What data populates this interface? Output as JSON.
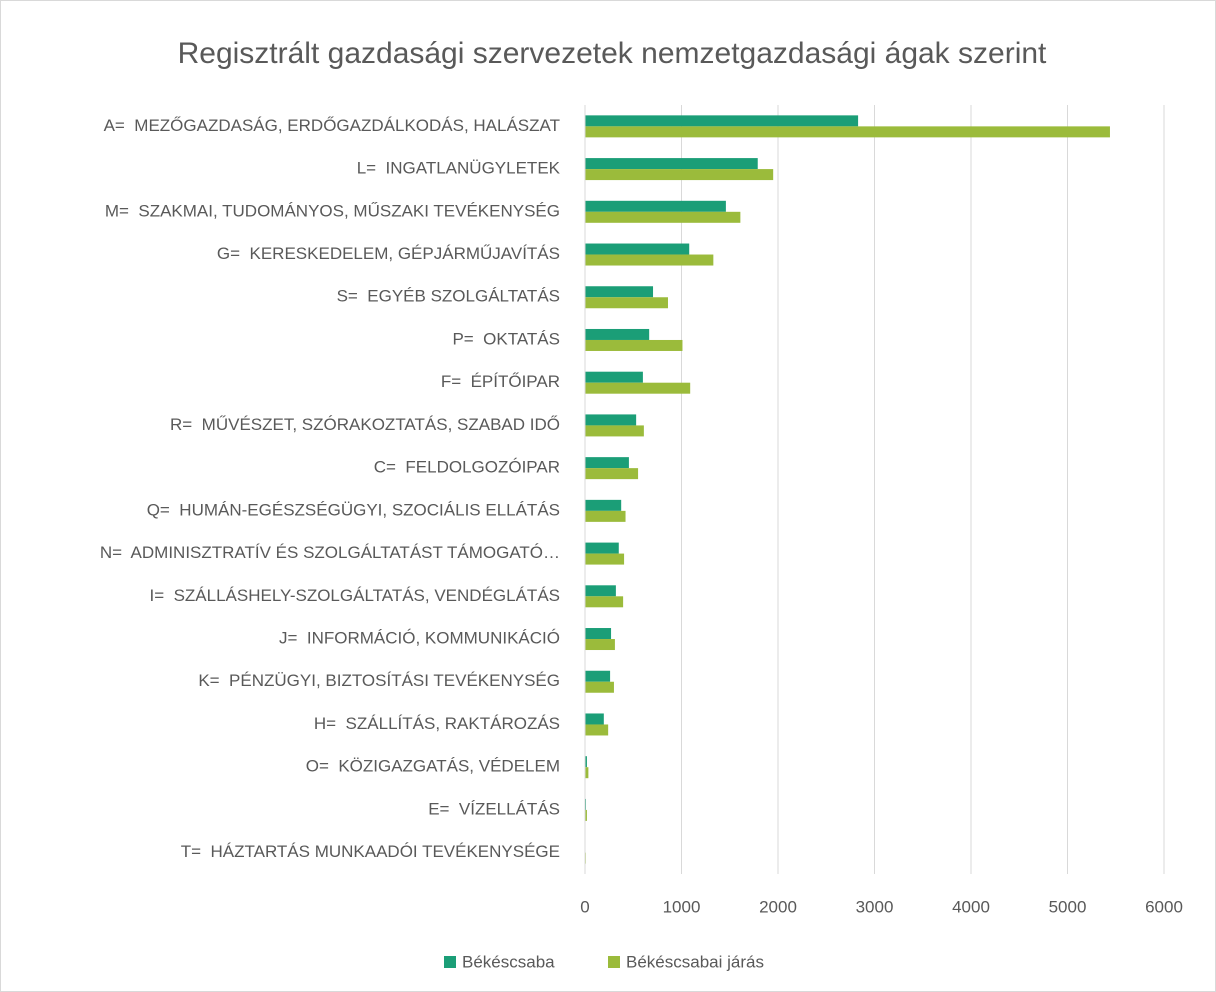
{
  "chart_data": {
    "type": "bar",
    "orientation": "horizontal",
    "title": "Regisztrált gazdasági szervezetek nemzetgazdasági ágak szerint",
    "categories": [
      "A=  MEZŐGAZDASÁG, ERDŐGAZDÁLKODÁS, HALÁSZAT",
      "L=  INGATLANÜGYLETEK",
      "M=  SZAKMAI, TUDOMÁNYOS, MŰSZAKI TEVÉKENYSÉG",
      "G=  KERESKEDELEM, GÉPJÁRMŰJAVÍTÁS",
      "S=  EGYÉB SZOLGÁLTATÁS",
      "P=  OKTATÁS",
      "F=  ÉPÍTŐIPAR",
      "R=  MŰVÉSZET, SZÓRAKOZTATÁS, SZABAD IDŐ",
      "C=  FELDOLGOZÓIPAR",
      "Q=  HUMÁN-EGÉSZSÉGÜGYI, SZOCIÁLIS ELLÁTÁS",
      "N=  ADMINISZTRATÍV ÉS SZOLGÁLTATÁST TÁMOGATÓ…",
      "I=  SZÁLLÁSHELY-SZOLGÁLTATÁS, VENDÉGLÁTÁS",
      "J=  INFORMÁCIÓ, KOMMUNIKÁCIÓ",
      "K=  PÉNZÜGYI, BIZTOSÍTÁSI TEVÉKENYSÉG",
      "H=  SZÁLLÍTÁS, RAKTÁROZÁS",
      "O=  KÖZIGAZGATÁS, VÉDELEM",
      "E=  VÍZELLÁTÁS",
      "T=  HÁZTARTÁS MUNKAADÓI TEVÉKENYSÉGE"
    ],
    "series": [
      {
        "name": "Békéscsaba",
        "color": "#1b9e77",
        "values": [
          2830,
          1790,
          1460,
          1080,
          705,
          665,
          600,
          530,
          455,
          375,
          350,
          320,
          270,
          260,
          195,
          20,
          10,
          5
        ]
      },
      {
        "name": "Békéscsabai járás",
        "color": "#9bbb3b",
        "values": [
          5440,
          1950,
          1610,
          1330,
          860,
          1010,
          1090,
          610,
          550,
          420,
          405,
          395,
          310,
          300,
          240,
          35,
          20,
          8
        ]
      }
    ],
    "xlim": [
      0,
      6000
    ],
    "xticks": [
      0,
      1000,
      2000,
      3000,
      4000,
      5000,
      6000
    ],
    "grid": true,
    "legend": "bottom"
  }
}
